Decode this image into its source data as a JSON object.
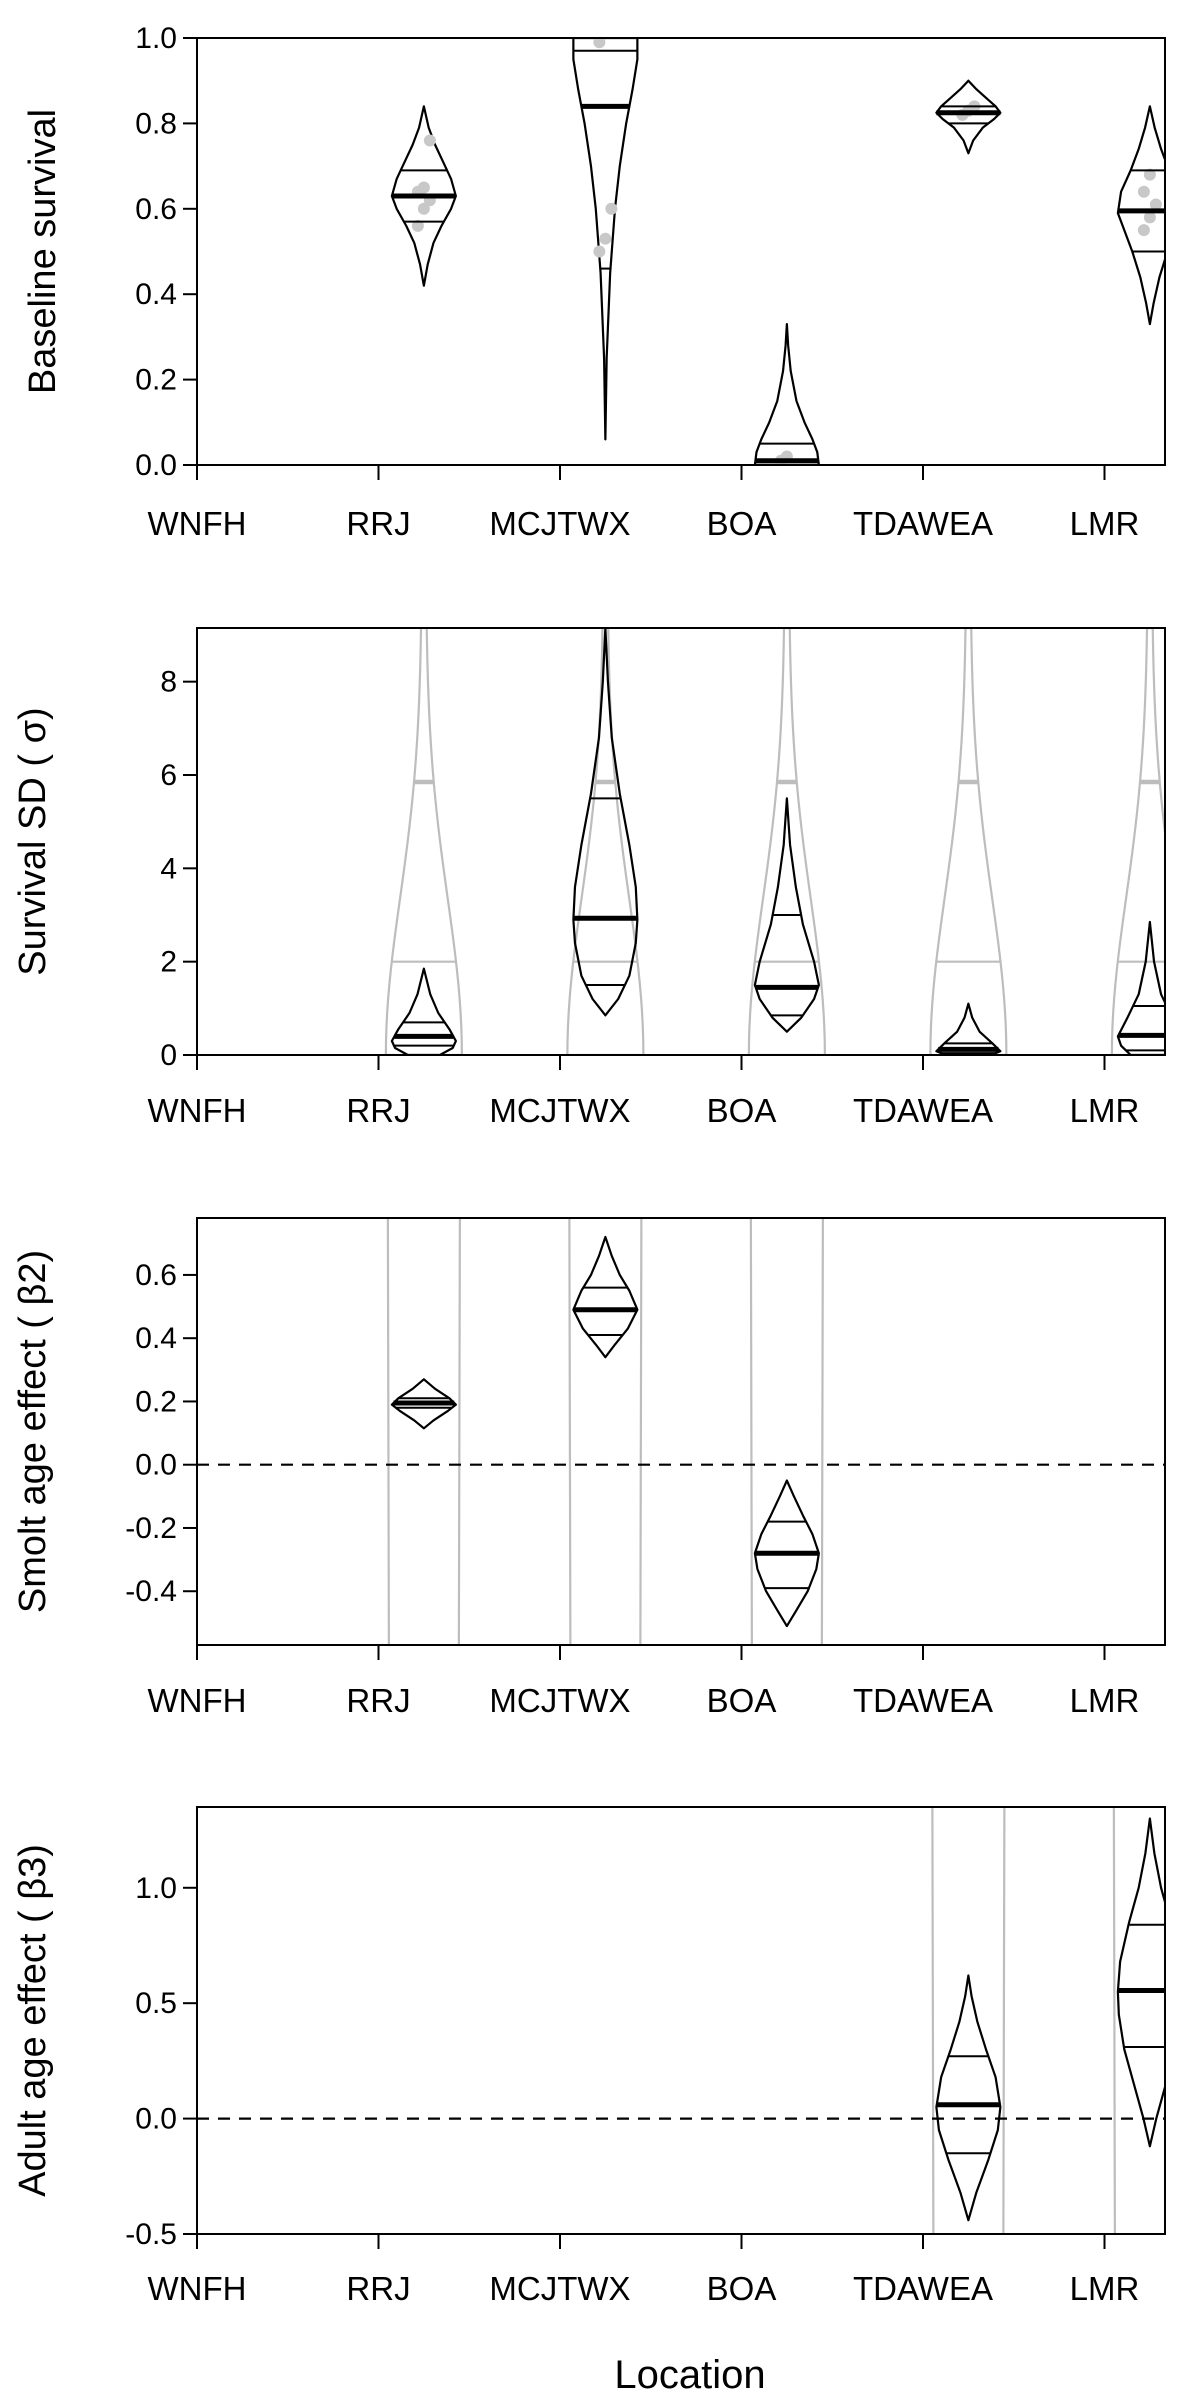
{
  "chart_data": [
    {
      "type": "violin",
      "ylabel": "Baseline survival",
      "ylim": [
        0,
        1
      ],
      "yticks": [
        "0.0",
        "0.2",
        "0.4",
        "0.6",
        "0.8",
        "1.0"
      ],
      "xticks": [
        "WNFH",
        "RRJ",
        "MCJTWX",
        "BOA",
        "TDAWEA",
        "LMR"
      ],
      "zero_line": false,
      "grey_prior": false,
      "violins": [
        {
          "pos": 1.5,
          "profile": [
            [
              0.42,
              0
            ],
            [
              0.47,
              0.12
            ],
            [
              0.52,
              0.3
            ],
            [
              0.56,
              0.55
            ],
            [
              0.6,
              0.85
            ],
            [
              0.63,
              1
            ],
            [
              0.67,
              0.85
            ],
            [
              0.71,
              0.6
            ],
            [
              0.75,
              0.35
            ],
            [
              0.79,
              0.15
            ],
            [
              0.84,
              0
            ]
          ],
          "median": 0.63,
          "quartiles": [
            0.57,
            0.69
          ],
          "points": [
            0.56,
            0.6,
            0.62,
            0.64,
            0.65,
            0.76
          ]
        },
        {
          "pos": 2.5,
          "profile": [
            [
              0.06,
              0
            ],
            [
              0.25,
              0.04
            ],
            [
              0.45,
              0.15
            ],
            [
              0.6,
              0.3
            ],
            [
              0.7,
              0.45
            ],
            [
              0.8,
              0.65
            ],
            [
              0.88,
              0.85
            ],
            [
              0.95,
              1
            ],
            [
              1.0,
              1
            ]
          ],
          "median": 0.84,
          "quartiles": [
            0.46,
            0.97
          ],
          "points": [
            0.5,
            0.53,
            0.6,
            0.99
          ]
        },
        {
          "pos": 3.5,
          "profile": [
            [
              0.0,
              1
            ],
            [
              0.03,
              0.95
            ],
            [
              0.06,
              0.8
            ],
            [
              0.1,
              0.55
            ],
            [
              0.15,
              0.3
            ],
            [
              0.22,
              0.12
            ],
            [
              0.28,
              0.04
            ],
            [
              0.33,
              0
            ]
          ],
          "median": 0.01,
          "quartiles": [
            0.0,
            0.05
          ],
          "points": [
            0.01,
            0.02
          ]
        },
        {
          "pos": 4.5,
          "profile": [
            [
              0.73,
              0
            ],
            [
              0.76,
              0.15
            ],
            [
              0.79,
              0.45
            ],
            [
              0.81,
              0.8
            ],
            [
              0.825,
              1
            ],
            [
              0.84,
              0.85
            ],
            [
              0.86,
              0.55
            ],
            [
              0.88,
              0.25
            ],
            [
              0.9,
              0
            ]
          ],
          "median": 0.825,
          "quartiles": [
            0.8,
            0.84
          ],
          "points": [
            0.82,
            0.83,
            0.84
          ]
        },
        {
          "pos": 5.5,
          "profile": [
            [
              0.33,
              0
            ],
            [
              0.38,
              0.12
            ],
            [
              0.44,
              0.3
            ],
            [
              0.5,
              0.55
            ],
            [
              0.55,
              0.8
            ],
            [
              0.59,
              1
            ],
            [
              0.64,
              0.9
            ],
            [
              0.69,
              0.6
            ],
            [
              0.74,
              0.35
            ],
            [
              0.79,
              0.15
            ],
            [
              0.84,
              0
            ]
          ],
          "median": 0.595,
          "quartiles": [
            0.5,
            0.69
          ],
          "points": [
            0.55,
            0.58,
            0.61,
            0.64,
            0.68
          ]
        }
      ]
    },
    {
      "type": "violin",
      "ylabel": "Survival SD ( σ)",
      "ylim": [
        0,
        9.15
      ],
      "yticks": [
        "0",
        "2",
        "4",
        "6",
        "8"
      ],
      "xticks": [
        "WNFH",
        "RRJ",
        "MCJTWX",
        "BOA",
        "TDAWEA",
        "LMR"
      ],
      "zero_line": false,
      "grey_prior": true,
      "prior_quartiles": [
        2.0,
        5.85
      ],
      "violins": [
        {
          "pos": 1.5,
          "profile": [
            [
              0,
              0.5
            ],
            [
              0.15,
              0.9
            ],
            [
              0.3,
              1
            ],
            [
              0.55,
              0.8
            ],
            [
              0.9,
              0.45
            ],
            [
              1.3,
              0.2
            ],
            [
              1.85,
              0
            ]
          ],
          "median": 0.4,
          "quartiles": [
            0.2,
            0.7
          ],
          "points": []
        },
        {
          "pos": 2.5,
          "profile": [
            [
              0.85,
              0
            ],
            [
              1.2,
              0.4
            ],
            [
              1.7,
              0.75
            ],
            [
              2.4,
              0.95
            ],
            [
              2.9,
              1
            ],
            [
              3.6,
              0.95
            ],
            [
              4.5,
              0.75
            ],
            [
              5.6,
              0.45
            ],
            [
              6.8,
              0.2
            ],
            [
              8.0,
              0.08
            ],
            [
              9.15,
              0
            ]
          ],
          "median": 2.93,
          "quartiles": [
            1.5,
            5.5
          ],
          "points": []
        },
        {
          "pos": 3.5,
          "profile": [
            [
              0.5,
              0
            ],
            [
              0.8,
              0.45
            ],
            [
              1.2,
              0.85
            ],
            [
              1.5,
              1
            ],
            [
              2.0,
              0.85
            ],
            [
              2.8,
              0.5
            ],
            [
              3.6,
              0.28
            ],
            [
              4.5,
              0.1
            ],
            [
              5.5,
              0
            ]
          ],
          "median": 1.45,
          "quartiles": [
            0.85,
            3.0
          ],
          "points": []
        },
        {
          "pos": 4.5,
          "profile": [
            [
              0,
              0.7
            ],
            [
              0.08,
              1
            ],
            [
              0.25,
              0.75
            ],
            [
              0.5,
              0.35
            ],
            [
              0.8,
              0.12
            ],
            [
              1.1,
              0
            ]
          ],
          "median": 0.12,
          "quartiles": [
            0.04,
            0.25
          ],
          "points": []
        },
        {
          "pos": 5.5,
          "profile": [
            [
              0,
              0.6
            ],
            [
              0.2,
              0.9
            ],
            [
              0.4,
              1
            ],
            [
              0.8,
              0.7
            ],
            [
              1.3,
              0.35
            ],
            [
              2.0,
              0.13
            ],
            [
              2.85,
              0
            ]
          ],
          "median": 0.42,
          "quartiles": [
            0.1,
            1.05
          ],
          "points": []
        }
      ]
    },
    {
      "type": "violin",
      "ylabel": "Smolt age effect ( β2)",
      "ylim": [
        -0.57,
        0.78
      ],
      "yticks": [
        "-0.4",
        "-0.2",
        "0.0",
        "0.2",
        "0.4",
        "0.6"
      ],
      "xticks": [
        "WNFH",
        "RRJ",
        "MCJTWX",
        "BOA",
        "TDAWEA",
        "LMR"
      ],
      "zero_line": true,
      "grey_prior": true,
      "violins": [
        {
          "pos": 1.5,
          "profile": [
            [
              0.115,
              0
            ],
            [
              0.14,
              0.3
            ],
            [
              0.17,
              0.75
            ],
            [
              0.19,
              1
            ],
            [
              0.21,
              0.8
            ],
            [
              0.24,
              0.35
            ],
            [
              0.27,
              0
            ]
          ],
          "median": 0.195,
          "quartiles": [
            0.18,
            0.21
          ],
          "points": []
        },
        {
          "pos": 2.5,
          "profile": [
            [
              0.34,
              0
            ],
            [
              0.38,
              0.3
            ],
            [
              0.43,
              0.7
            ],
            [
              0.49,
              1
            ],
            [
              0.55,
              0.75
            ],
            [
              0.6,
              0.45
            ],
            [
              0.66,
              0.2
            ],
            [
              0.72,
              0
            ]
          ],
          "median": 0.49,
          "quartiles": [
            0.41,
            0.56
          ],
          "points": []
        },
        {
          "pos": 3.5,
          "profile": [
            [
              -0.51,
              0
            ],
            [
              -0.46,
              0.3
            ],
            [
              -0.4,
              0.65
            ],
            [
              -0.33,
              0.92
            ],
            [
              -0.28,
              1
            ],
            [
              -0.22,
              0.8
            ],
            [
              -0.16,
              0.5
            ],
            [
              -0.1,
              0.22
            ],
            [
              -0.05,
              0
            ]
          ],
          "median": -0.28,
          "quartiles": [
            -0.39,
            -0.18
          ],
          "points": []
        }
      ]
    },
    {
      "type": "violin",
      "ylabel": "Adult age effect ( β3)",
      "ylim": [
        -0.5,
        1.35
      ],
      "yticks": [
        "-0.5",
        "0.0",
        "0.5",
        "1.0"
      ],
      "xticks": [
        "WNFH",
        "RRJ",
        "MCJTWX",
        "BOA",
        "TDAWEA",
        "LMR"
      ],
      "xlabel": "Location",
      "zero_line": true,
      "grey_prior": true,
      "violins": [
        {
          "pos": 4.5,
          "profile": [
            [
              -0.44,
              0
            ],
            [
              -0.32,
              0.25
            ],
            [
              -0.18,
              0.62
            ],
            [
              -0.05,
              0.92
            ],
            [
              0.05,
              1
            ],
            [
              0.18,
              0.85
            ],
            [
              0.3,
              0.55
            ],
            [
              0.42,
              0.28
            ],
            [
              0.53,
              0.1
            ],
            [
              0.62,
              0
            ]
          ],
          "median": 0.06,
          "quartiles": [
            -0.15,
            0.27
          ],
          "points": []
        },
        {
          "pos": 5.5,
          "profile": [
            [
              -0.12,
              0
            ],
            [
              0.0,
              0.2
            ],
            [
              0.15,
              0.5
            ],
            [
              0.3,
              0.8
            ],
            [
              0.45,
              0.97
            ],
            [
              0.55,
              1
            ],
            [
              0.68,
              0.93
            ],
            [
              0.85,
              0.65
            ],
            [
              1.0,
              0.35
            ],
            [
              1.15,
              0.14
            ],
            [
              1.3,
              0
            ]
          ],
          "median": 0.555,
          "quartiles": [
            0.31,
            0.84
          ],
          "points": []
        }
      ]
    }
  ]
}
